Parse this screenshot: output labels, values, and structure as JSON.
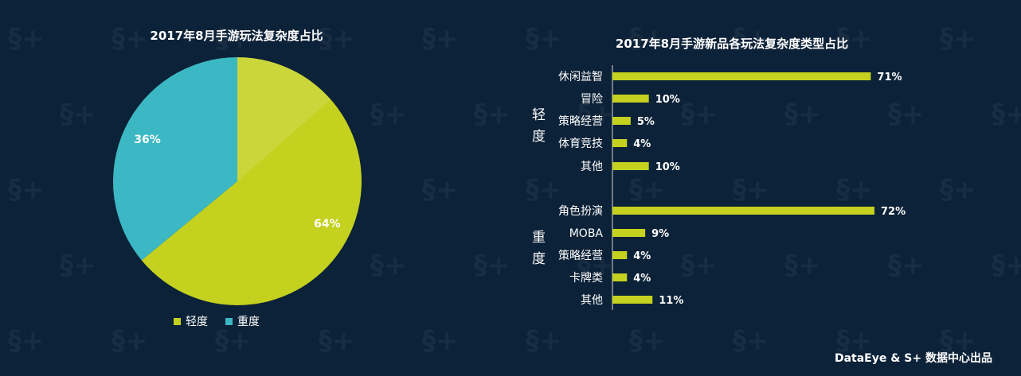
{
  "colors": {
    "background": "#0c2238",
    "light": "#c4d11f",
    "heavy": "#3bb8c4",
    "bar": "#c4d11f",
    "text": "#ffffff"
  },
  "chart_data": [
    {
      "type": "pie",
      "title": "2017年8月手游玩法复杂度占比",
      "labels": [
        "轻度",
        "重度"
      ],
      "values": [
        64,
        36
      ],
      "value_labels": [
        "64%",
        "36%"
      ],
      "legend_position": "bottom"
    },
    {
      "type": "bar",
      "orientation": "horizontal",
      "title": "2017年8月手游新品各玩法复杂度类型占比",
      "groups": [
        {
          "name": "轻度",
          "categories": [
            "休闲益智",
            "冒险",
            "策略经营",
            "体育竞技",
            "其他"
          ],
          "values": [
            71,
            10,
            5,
            4,
            10
          ],
          "value_labels": [
            "71%",
            "10%",
            "5%",
            "4%",
            "10%"
          ]
        },
        {
          "name": "重度",
          "categories": [
            "角色扮演",
            "MOBA",
            "策略经营",
            "卡牌类",
            "其他"
          ],
          "values": [
            72,
            9,
            4,
            4,
            11
          ],
          "value_labels": [
            "72%",
            "9%",
            "4%",
            "4%",
            "11%"
          ]
        }
      ],
      "xlim": [
        0,
        72
      ]
    }
  ],
  "footer": "DataEye & S+ 数据中心出品"
}
